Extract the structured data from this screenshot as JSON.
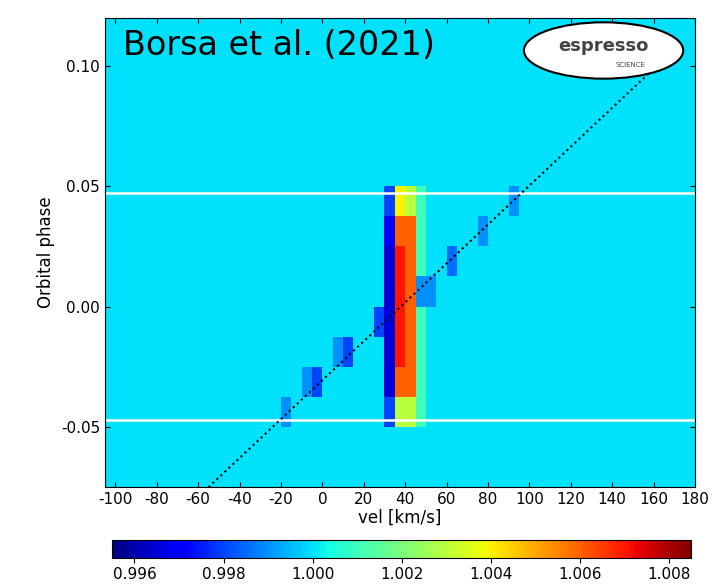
{
  "chart_data": {
    "type": "heatmap",
    "title": "Borsa et al. (2021)",
    "logo": {
      "text": "espresso",
      "subtitle": "SCIENCE"
    },
    "x_label": "vel [km/s]",
    "y_label": "Orbital phase",
    "xlim": [
      -105,
      180
    ],
    "ylim": [
      -0.075,
      0.12
    ],
    "xticks": [
      -100,
      -80,
      -60,
      -40,
      -20,
      0,
      20,
      40,
      60,
      80,
      100,
      120,
      140,
      160,
      180
    ],
    "yticks": [
      {
        "value": -0.05,
        "label": "-0.05"
      },
      {
        "value": 0.0,
        "label": "0.00"
      },
      {
        "value": 0.05,
        "label": "0.05"
      },
      {
        "value": 0.1,
        "label": "0.10"
      }
    ],
    "color": "jet",
    "x_edges": [
      -105,
      -100,
      -95,
      -90,
      -85,
      -80,
      -75,
      -70,
      -65,
      -60,
      -55,
      -50,
      -45,
      -40,
      -35,
      -30,
      -25,
      -20,
      -15,
      -10,
      -5,
      0,
      5,
      10,
      15,
      20,
      25,
      30,
      35,
      40,
      45,
      50,
      55,
      60,
      65,
      70,
      75,
      80,
      85,
      90,
      95,
      100,
      105,
      110,
      115,
      120,
      125,
      130,
      135,
      140,
      145,
      150,
      155,
      160,
      165,
      170,
      175,
      180
    ],
    "y_edges": [
      -0.075,
      -0.0625,
      -0.05,
      -0.0375,
      -0.025,
      -0.0125,
      0.0,
      0.0125,
      0.025,
      0.0375,
      0.05,
      0.0625,
      0.075,
      0.0875,
      0.1,
      0.1125,
      0.125
    ],
    "cells": [
      [
        1,
        1,
        1,
        1,
        1,
        1,
        1,
        1,
        1,
        1,
        1,
        1,
        1,
        1,
        1,
        1,
        1,
        1,
        1,
        1,
        1,
        1,
        1,
        1,
        1,
        1,
        1,
        1,
        1,
        1,
        1,
        1,
        1,
        1,
        1,
        1,
        1,
        1,
        1,
        1,
        1,
        1,
        1,
        1,
        1,
        1,
        1,
        1,
        1,
        1,
        1,
        1,
        1,
        1,
        1,
        1,
        1
      ],
      [
        1,
        1,
        1,
        1,
        1,
        1,
        1,
        1,
        1,
        1,
        1,
        1,
        1,
        1,
        1,
        1,
        1,
        1,
        1,
        1,
        1,
        1,
        1,
        1,
        1,
        1,
        1,
        1,
        1,
        1,
        1,
        1,
        1,
        1,
        1,
        1,
        1,
        1,
        1,
        1,
        1,
        1,
        1,
        1,
        1,
        1,
        1,
        1,
        1,
        1,
        1,
        1,
        1,
        1,
        1,
        1,
        1
      ],
      [
        1,
        1,
        1,
        1,
        1,
        1,
        1,
        1,
        1,
        1,
        1,
        1,
        1,
        1,
        1,
        1,
        1,
        0.999,
        1,
        1,
        1,
        1,
        1,
        1,
        1,
        1,
        1,
        0.998,
        1.003,
        1.003,
        1.001,
        1,
        1,
        1,
        1,
        1,
        1,
        1,
        1,
        1,
        1,
        1,
        1,
        1,
        1,
        1,
        1,
        1,
        1,
        1,
        1,
        1,
        1,
        1,
        1,
        1,
        1
      ],
      [
        1,
        1,
        1,
        1,
        1,
        1,
        1,
        1,
        1,
        1,
        1,
        1,
        1,
        1,
        1,
        1,
        1,
        1,
        1,
        0.999,
        0.998,
        1,
        1,
        1,
        1,
        1,
        1,
        0.9965,
        1.006,
        1.006,
        1.001,
        1,
        1,
        1,
        1,
        1,
        1,
        1,
        1,
        1,
        1,
        1,
        1,
        1,
        1,
        1,
        1,
        1,
        1,
        1,
        1,
        1,
        1,
        1,
        1,
        1,
        1
      ],
      [
        1,
        1,
        1,
        1,
        1,
        1,
        1,
        1,
        1,
        1,
        1,
        1,
        1,
        1,
        1,
        1,
        1,
        1,
        1,
        1,
        1,
        1,
        0.999,
        0.998,
        1,
        1,
        1,
        0.9965,
        1.007,
        1.006,
        1.001,
        1,
        1,
        1,
        1,
        1,
        1,
        1,
        1,
        1,
        1,
        1,
        1,
        1,
        1,
        1,
        1,
        1,
        1,
        1,
        1,
        1,
        1,
        1,
        1,
        1,
        1
      ],
      [
        1,
        1,
        1,
        1,
        1,
        1,
        1,
        1,
        1,
        1,
        1,
        1,
        1,
        1,
        1,
        1,
        1,
        1,
        1,
        1,
        1,
        1,
        1,
        1,
        1,
        1,
        0.998,
        0.9965,
        1.007,
        1.006,
        1.001,
        1,
        1,
        1,
        1,
        1,
        1,
        1,
        1,
        1,
        1,
        1,
        1,
        1,
        1,
        1,
        1,
        1,
        1,
        1,
        1,
        1,
        1,
        1,
        1,
        1,
        1
      ],
      [
        1,
        1,
        1,
        1,
        1,
        1,
        1,
        1,
        1,
        1,
        1,
        1,
        1,
        1,
        1,
        1,
        1,
        1,
        1,
        1,
        1,
        1,
        1,
        1,
        1,
        1,
        1,
        0.9965,
        1.007,
        1.006,
        0.999,
        0.999,
        1,
        1,
        1,
        1,
        1,
        1,
        1,
        1,
        1,
        1,
        1,
        1,
        1,
        1,
        1,
        1,
        1,
        1,
        1,
        1,
        1,
        1,
        1,
        1,
        1
      ],
      [
        1,
        1,
        1,
        1,
        1,
        1,
        1,
        1,
        1,
        1,
        1,
        1,
        1,
        1,
        1,
        1,
        1,
        1,
        1,
        1,
        1,
        1,
        1,
        1,
        1,
        1,
        1,
        0.9965,
        1.007,
        1.006,
        1.001,
        1,
        1,
        0.9985,
        1,
        1,
        1,
        1,
        1,
        1,
        1,
        1,
        1,
        1,
        1,
        1,
        1,
        1,
        1,
        1,
        1,
        1,
        1,
        1,
        1,
        1,
        1
      ],
      [
        1,
        1,
        1,
        1,
        1,
        1,
        1,
        1,
        1,
        1,
        1,
        1,
        1,
        1,
        1,
        1,
        1,
        1,
        1,
        1,
        1,
        1,
        1,
        1,
        1,
        1,
        1,
        0.997,
        1.006,
        1.006,
        1.001,
        1,
        1,
        1,
        1,
        1,
        0.999,
        1,
        1,
        1,
        1,
        1,
        1,
        1,
        1,
        1,
        1,
        1,
        1,
        1,
        1,
        1,
        1,
        1,
        1,
        1,
        1
      ],
      [
        1,
        1,
        1,
        1,
        1,
        1,
        1,
        1,
        1,
        1,
        1,
        1,
        1,
        1,
        1,
        1,
        1,
        1,
        1,
        1,
        1,
        1,
        1,
        1,
        1,
        1,
        1,
        0.998,
        1.004,
        1.003,
        1.001,
        1,
        1,
        1,
        1,
        1,
        1,
        1,
        1,
        0.999,
        1,
        1,
        1,
        1,
        1,
        1,
        1,
        1,
        1,
        1,
        1,
        1,
        1,
        1,
        1,
        1,
        1
      ],
      [
        1,
        1,
        1,
        1,
        1,
        1,
        1,
        1,
        1,
        1,
        1,
        1,
        1,
        1,
        1,
        1,
        1,
        1,
        1,
        1,
        1,
        1,
        1,
        1,
        1,
        1,
        1,
        1,
        1,
        1,
        1,
        1,
        1,
        1,
        1,
        1,
        1,
        1,
        1,
        1,
        1,
        1,
        1,
        1,
        1,
        1,
        1,
        1,
        1,
        1,
        1,
        1,
        1,
        1,
        1,
        1,
        1
      ],
      [
        1,
        1,
        1,
        1,
        1,
        1,
        1,
        1,
        1,
        1,
        1,
        1,
        1,
        1,
        1,
        1,
        1,
        1,
        1,
        1,
        1,
        1,
        1,
        1,
        1,
        1,
        1,
        1,
        1,
        1,
        1,
        1,
        1,
        1,
        1,
        1,
        1,
        1,
        1,
        1,
        1,
        1,
        1,
        1,
        1,
        1,
        1,
        1,
        1,
        1,
        1,
        1,
        1,
        1,
        1,
        1,
        1
      ],
      [
        1,
        1,
        1,
        1,
        1,
        1,
        1,
        1,
        1,
        1,
        1,
        1,
        1,
        1,
        1,
        1,
        1,
        1,
        1,
        1,
        1,
        1,
        1,
        1,
        1,
        1,
        1,
        1,
        1,
        1,
        1,
        1,
        1,
        1,
        1,
        1,
        1,
        1,
        1,
        1,
        1,
        1,
        1,
        1,
        1,
        1,
        1,
        1,
        1,
        1,
        1,
        1,
        1,
        1,
        1,
        1,
        1
      ],
      [
        1,
        1,
        1,
        1,
        1,
        1,
        1,
        1,
        1,
        1,
        1,
        1,
        1,
        1,
        1,
        1,
        1,
        1,
        1,
        1,
        1,
        1,
        1,
        1,
        1,
        1,
        1,
        1,
        1,
        1,
        1,
        1,
        1,
        1,
        1,
        1,
        1,
        1,
        1,
        1,
        1,
        1,
        1,
        1,
        1,
        1,
        1,
        1,
        1,
        1,
        1,
        1,
        1,
        1,
        1,
        1,
        1
      ],
      [
        1,
        1,
        1,
        1,
        1,
        1,
        1,
        1,
        1,
        1,
        1,
        1,
        1,
        1,
        1,
        1,
        1,
        1,
        1,
        1,
        1,
        1,
        1,
        1,
        1,
        1,
        1,
        1,
        1,
        1,
        1,
        1,
        1,
        1,
        1,
        1,
        1,
        1,
        1,
        1,
        1,
        1,
        1,
        1,
        1,
        1,
        1,
        1,
        1,
        1,
        1,
        1,
        1,
        1,
        1,
        1,
        1
      ],
      [
        1,
        1,
        1,
        1,
        1,
        1,
        1,
        1,
        1,
        1,
        1,
        1,
        1,
        1,
        1,
        1,
        1,
        1,
        1,
        1,
        1,
        1,
        1,
        1,
        1,
        1,
        1,
        1,
        1,
        1,
        1,
        1,
        1,
        1,
        1,
        1,
        1,
        1,
        1,
        1,
        1,
        1,
        1,
        1,
        1,
        1,
        1,
        1,
        1,
        1,
        1,
        1,
        1,
        1,
        1,
        1,
        1
      ]
    ],
    "colorbar_range": [
      0.9955,
      1.0085
    ],
    "colorbar_ticks": [
      {
        "value": 0.996,
        "label": "0.996"
      },
      {
        "value": 0.998,
        "label": "0.998"
      },
      {
        "value": 1.0,
        "label": "1.000"
      },
      {
        "value": 1.002,
        "label": "1.002"
      },
      {
        "value": 1.004,
        "label": "1.004"
      },
      {
        "value": 1.006,
        "label": "1.006"
      },
      {
        "value": 1.008,
        "label": "1.008"
      }
    ],
    "transit_phases": [
      -0.047,
      0.047
    ],
    "planet_track": {
      "x": [
        -55,
        174
      ],
      "y": [
        -0.075,
        0.11
      ]
    }
  }
}
